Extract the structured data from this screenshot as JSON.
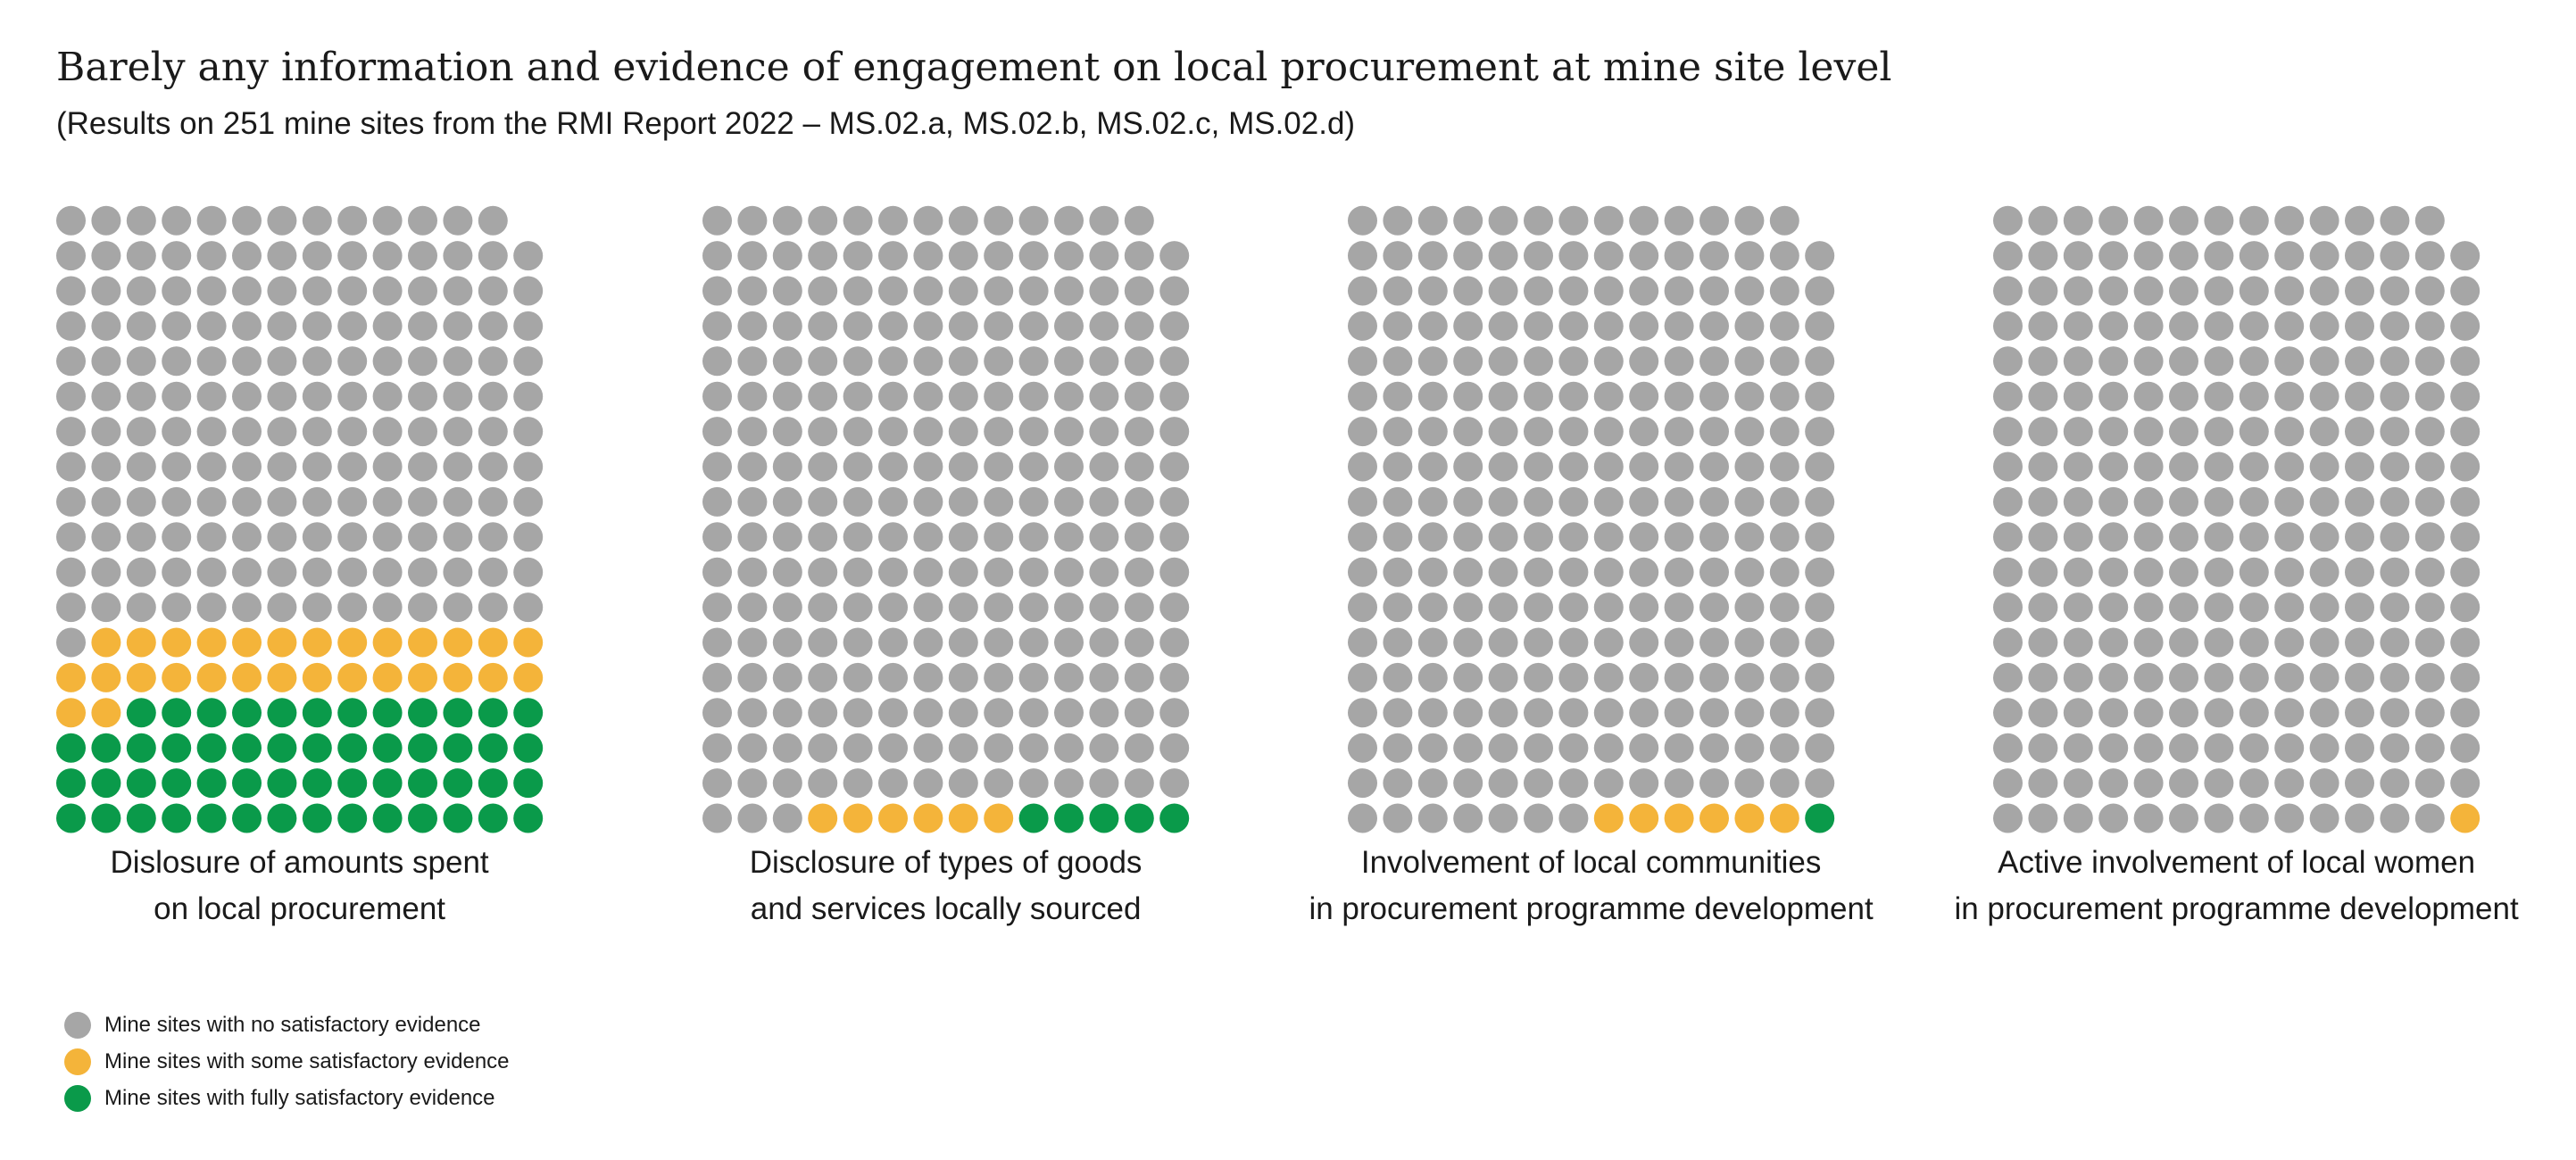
{
  "title": "Barely any information and evidence of engagement on local procurement at mine site level",
  "subtitle": "(Results on 251 mine sites from the RMI Report 2022 – MS.02.a, MS.02.b, MS.02.c, MS.02.d)",
  "colors": {
    "none": "#a6a6a6",
    "some": "#f4b43a",
    "full": "#0a9a4a"
  },
  "legend": [
    {
      "key": "none",
      "label": "Mine sites with no satisfactory evidence"
    },
    {
      "key": "some",
      "label": "Mine sites with some satisfactory evidence"
    },
    {
      "key": "full",
      "label": "Mine sites with fully satisfactory evidence"
    }
  ],
  "chart_data": [
    {
      "type": "waffle",
      "total": 251,
      "columns": 14,
      "label_lines": [
        "Dislosure of amounts spent",
        "on local procurement"
      ],
      "none": 168,
      "some": 29,
      "full": 54
    },
    {
      "type": "waffle",
      "total": 251,
      "columns": 14,
      "label_lines": [
        "Disclosure of types of goods",
        "and services locally sourced"
      ],
      "none": 240,
      "some": 6,
      "full": 5
    },
    {
      "type": "waffle",
      "total": 251,
      "columns": 14,
      "label_lines": [
        "Involvement of local communities",
        "in procurement programme development"
      ],
      "none": 244,
      "some": 6,
      "full": 1
    },
    {
      "type": "waffle",
      "total": 251,
      "columns": 14,
      "label_lines": [
        "Active involvement of local women",
        "in procurement programme development"
      ],
      "none": 250,
      "some": 1,
      "full": 0
    }
  ]
}
